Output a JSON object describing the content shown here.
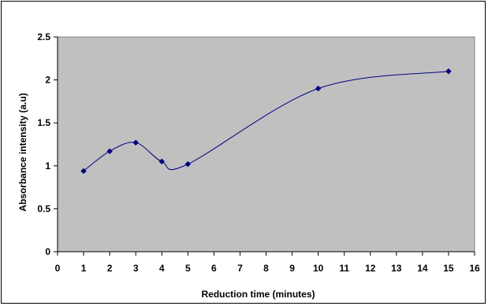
{
  "chart_data": {
    "type": "line",
    "xlabel": "Reduction time (minutes)",
    "ylabel": "Absorbance intensity (a.u)",
    "xlim": [
      0,
      16
    ],
    "ylim": [
      0,
      2.5
    ],
    "x_ticks": [
      "0",
      "1",
      "2",
      "3",
      "4",
      "5",
      "6",
      "7",
      "8",
      "9",
      "10",
      "11",
      "12",
      "13",
      "14",
      "15",
      "16"
    ],
    "y_ticks": [
      "0",
      "0.5",
      "1",
      "1.5",
      "2",
      "2.5"
    ],
    "grid": false,
    "legend": "none",
    "plot_background": "#c0c0c0",
    "line_color": "#000080",
    "marker": "diamond",
    "series": [
      {
        "x": [
          1,
          2,
          3,
          4,
          5,
          10,
          15
        ],
        "values": [
          0.94,
          1.17,
          1.27,
          1.05,
          1.02,
          1.9,
          2.1
        ]
      }
    ]
  }
}
